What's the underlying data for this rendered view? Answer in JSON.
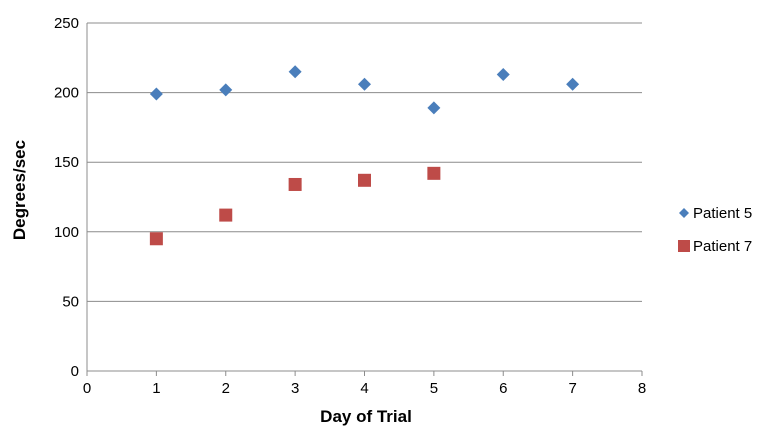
{
  "chart_data": {
    "type": "scatter",
    "title": "",
    "xlabel": "Day of Trial",
    "ylabel": "Degrees/sec",
    "xlim": [
      0,
      8
    ],
    "ylim": [
      0,
      250
    ],
    "xticks": [
      0,
      1,
      2,
      3,
      4,
      5,
      6,
      7,
      8
    ],
    "yticks": [
      0,
      50,
      100,
      150,
      200,
      250
    ],
    "grid": "horizontal",
    "legend_position": "right",
    "series": [
      {
        "name": "Patient 5",
        "marker": "diamond",
        "color": "#4a7ebb",
        "points": [
          [
            1,
            199
          ],
          [
            2,
            202
          ],
          [
            3,
            215
          ],
          [
            4,
            206
          ],
          [
            5,
            189
          ],
          [
            6,
            213
          ],
          [
            7,
            206
          ]
        ]
      },
      {
        "name": "Patient 7",
        "marker": "square",
        "color": "#be4b48",
        "points": [
          [
            1,
            95
          ],
          [
            2,
            112
          ],
          [
            3,
            134
          ],
          [
            4,
            137
          ],
          [
            5,
            142
          ]
        ]
      }
    ]
  }
}
